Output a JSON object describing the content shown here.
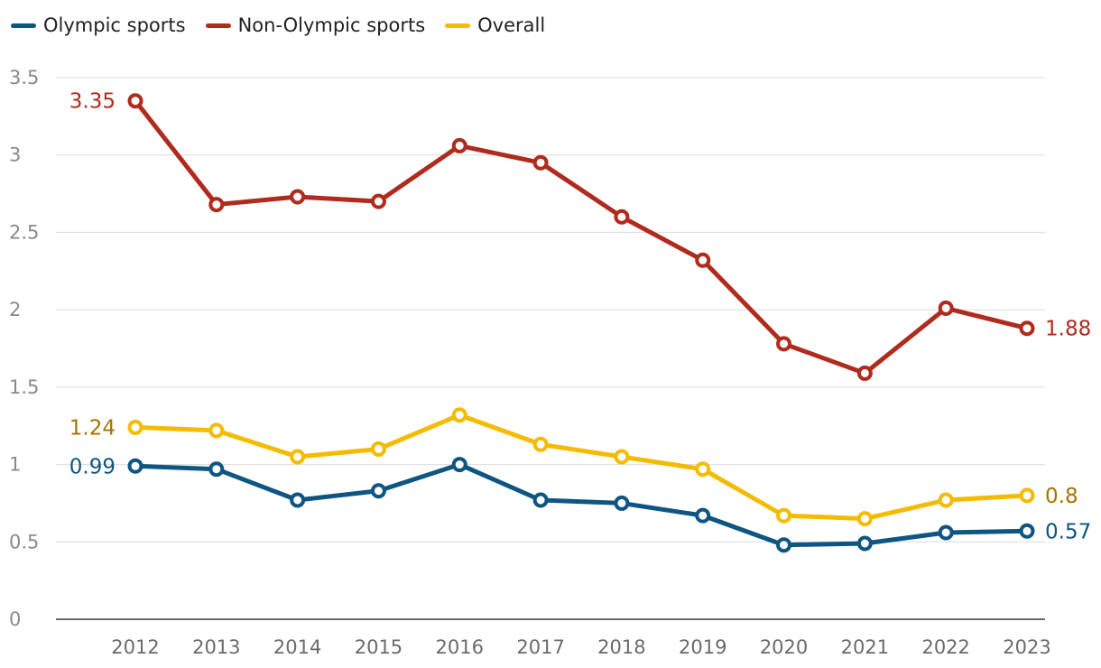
{
  "chart_data": {
    "type": "line",
    "title": "",
    "xlabel": "",
    "ylabel": "",
    "categories": [
      "2012",
      "2013",
      "2014",
      "2015",
      "2016",
      "2017",
      "2018",
      "2019",
      "2020",
      "2021",
      "2022",
      "2023"
    ],
    "ylim": [
      0,
      3.5
    ],
    "yticks": [
      0,
      0.5,
      1,
      1.5,
      2,
      2.5,
      3,
      3.5
    ],
    "ytick_labels": [
      "0",
      "0.5",
      "1",
      "1.5",
      "2",
      "2.5",
      "3",
      "3.5"
    ],
    "grid": true,
    "legend_position": "top-left",
    "series": [
      {
        "name": "Olympic sports",
        "color": "#0e5582",
        "label_color": "#0e5582",
        "values": [
          0.99,
          0.97,
          0.77,
          0.83,
          1.0,
          0.77,
          0.75,
          0.67,
          0.48,
          0.49,
          0.56,
          0.57
        ],
        "start_label": "0.99",
        "end_label": "0.57"
      },
      {
        "name": "Non-Olympic sports",
        "color": "#b02a1d",
        "label_color": "#b02a1d",
        "values": [
          3.35,
          2.68,
          2.73,
          2.7,
          3.06,
          2.95,
          2.6,
          2.32,
          1.78,
          1.59,
          2.01,
          1.88
        ],
        "start_label": "3.35",
        "end_label": "1.88"
      },
      {
        "name": "Overall",
        "color": "#f5bb00",
        "label_color": "#a37400",
        "values": [
          1.24,
          1.22,
          1.05,
          1.1,
          1.32,
          1.13,
          1.05,
          0.97,
          0.67,
          0.65,
          0.77,
          0.8
        ],
        "start_label": "1.24",
        "end_label": "0.8"
      }
    ]
  }
}
